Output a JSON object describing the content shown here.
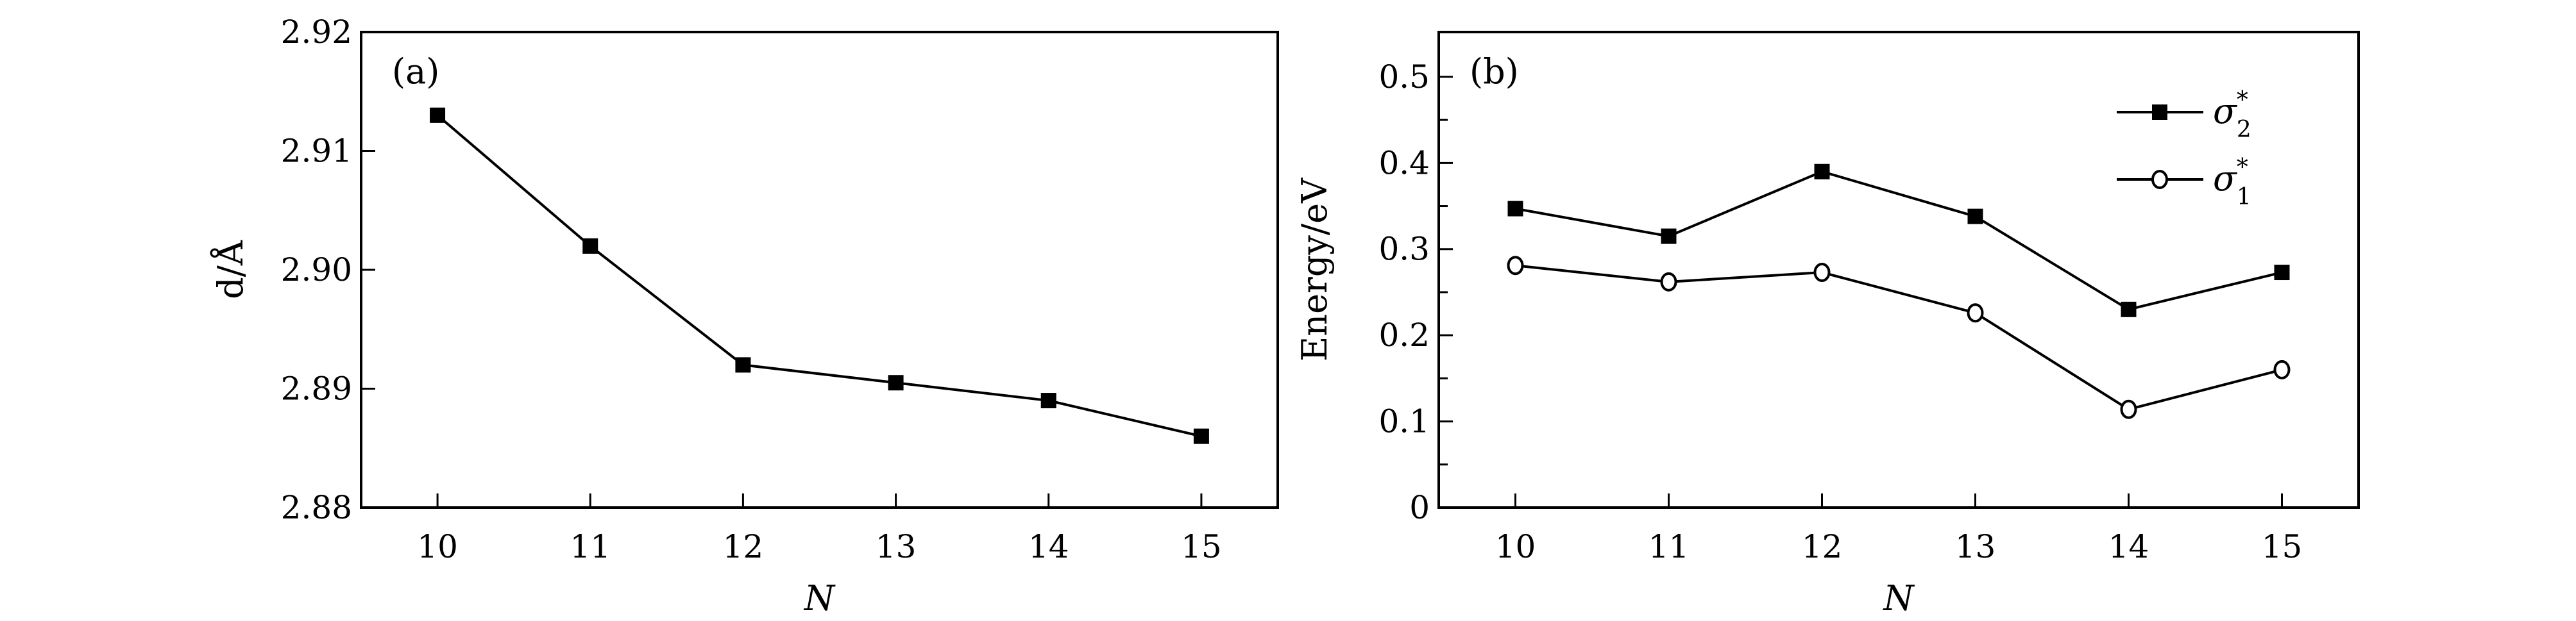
{
  "chart_data": [
    {
      "type": "line",
      "panel_label": "(a)",
      "xlabel": "N",
      "ylabel": "d/Å",
      "x": [
        10,
        11,
        12,
        13,
        14,
        15
      ],
      "x_tick_labels": [
        "10",
        "11",
        "12",
        "13",
        "14",
        "15"
      ],
      "y_tick_labels": [
        "2.88",
        "2.89",
        "2.90",
        "2.91",
        "2.92"
      ],
      "y_ticks": [
        2.88,
        2.89,
        2.9,
        2.91,
        2.92
      ],
      "xlim": [
        9.5,
        15.5
      ],
      "ylim": [
        2.88,
        2.92
      ],
      "grid": false,
      "series": [
        {
          "name": "d",
          "marker": "filled-square",
          "values": [
            2.913,
            2.902,
            2.892,
            2.8905,
            2.889,
            2.886
          ]
        }
      ]
    },
    {
      "type": "line",
      "panel_label": "(b)",
      "xlabel": "N",
      "ylabel": "Energy/eV",
      "x": [
        10,
        11,
        12,
        13,
        14,
        15
      ],
      "x_tick_labels": [
        "10",
        "11",
        "12",
        "13",
        "14",
        "15"
      ],
      "y_tick_labels": [
        "0",
        "0.1",
        "0.2",
        "0.3",
        "0.4",
        "0.5"
      ],
      "y_ticks": [
        0,
        0.1,
        0.2,
        0.3,
        0.4,
        0.5
      ],
      "y_minor_ticks": [
        0.05,
        0.15,
        0.25,
        0.35,
        0.45
      ],
      "xlim": [
        9.5,
        15.5
      ],
      "ylim": [
        0,
        0.552
      ],
      "grid": false,
      "legend_position": "top-right",
      "series": [
        {
          "name": "σ2*",
          "symbol": "σ",
          "sub": "2",
          "sup": "*",
          "marker": "filled-square",
          "values": [
            0.347,
            0.315,
            0.39,
            0.338,
            0.23,
            0.273
          ]
        },
        {
          "name": "σ1*",
          "symbol": "σ",
          "sub": "1",
          "sup": "*",
          "marker": "open-circle",
          "values": [
            0.281,
            0.262,
            0.273,
            0.226,
            0.114,
            0.16
          ]
        }
      ]
    }
  ]
}
